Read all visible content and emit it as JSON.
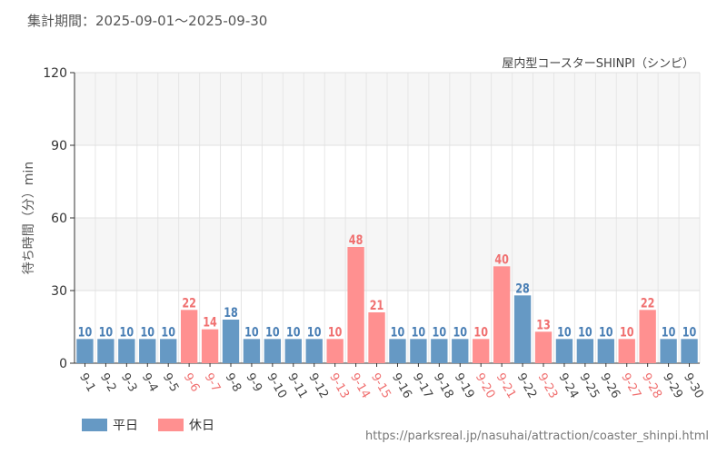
{
  "header": {
    "period": "集計期間：2025-09-01～2025-09-30"
  },
  "chart_data": {
    "type": "bar",
    "title": "屋内型コースターSHINPI（シンピ）",
    "ylabel": "待ち時間（分）min",
    "xlabel": "",
    "ylim": [
      0,
      120
    ],
    "yticks": [
      0,
      30,
      60,
      90,
      120
    ],
    "grid": true,
    "legend_placement": "bottom-left",
    "categories": [
      "9-1",
      "9-2",
      "9-3",
      "9-4",
      "9-5",
      "9-6",
      "9-7",
      "9-8",
      "9-9",
      "9-10",
      "9-11",
      "9-12",
      "9-13",
      "9-14",
      "9-15",
      "9-16",
      "9-17",
      "9-18",
      "9-19",
      "9-20",
      "9-21",
      "9-22",
      "9-23",
      "9-24",
      "9-25",
      "9-26",
      "9-27",
      "9-28",
      "9-29",
      "9-30"
    ],
    "values": [
      10,
      10,
      10,
      10,
      10,
      22,
      14,
      18,
      10,
      10,
      10,
      10,
      10,
      48,
      21,
      10,
      10,
      10,
      10,
      10,
      40,
      28,
      13,
      10,
      10,
      10,
      10,
      22,
      10,
      10
    ],
    "holiday": [
      false,
      false,
      false,
      false,
      false,
      true,
      true,
      false,
      false,
      false,
      false,
      false,
      true,
      true,
      true,
      false,
      false,
      false,
      false,
      true,
      true,
      false,
      true,
      false,
      false,
      false,
      true,
      true,
      false,
      false
    ],
    "series": [
      {
        "name": "平日",
        "color": "#6699c4",
        "label_color": "#4a7fb5"
      },
      {
        "name": "休日",
        "color": "#ff9090",
        "label_color": "#f07070"
      }
    ]
  },
  "footer": {
    "url": "https://parksreal.jp/nasuhai/attraction/coaster_shinpi.html"
  }
}
